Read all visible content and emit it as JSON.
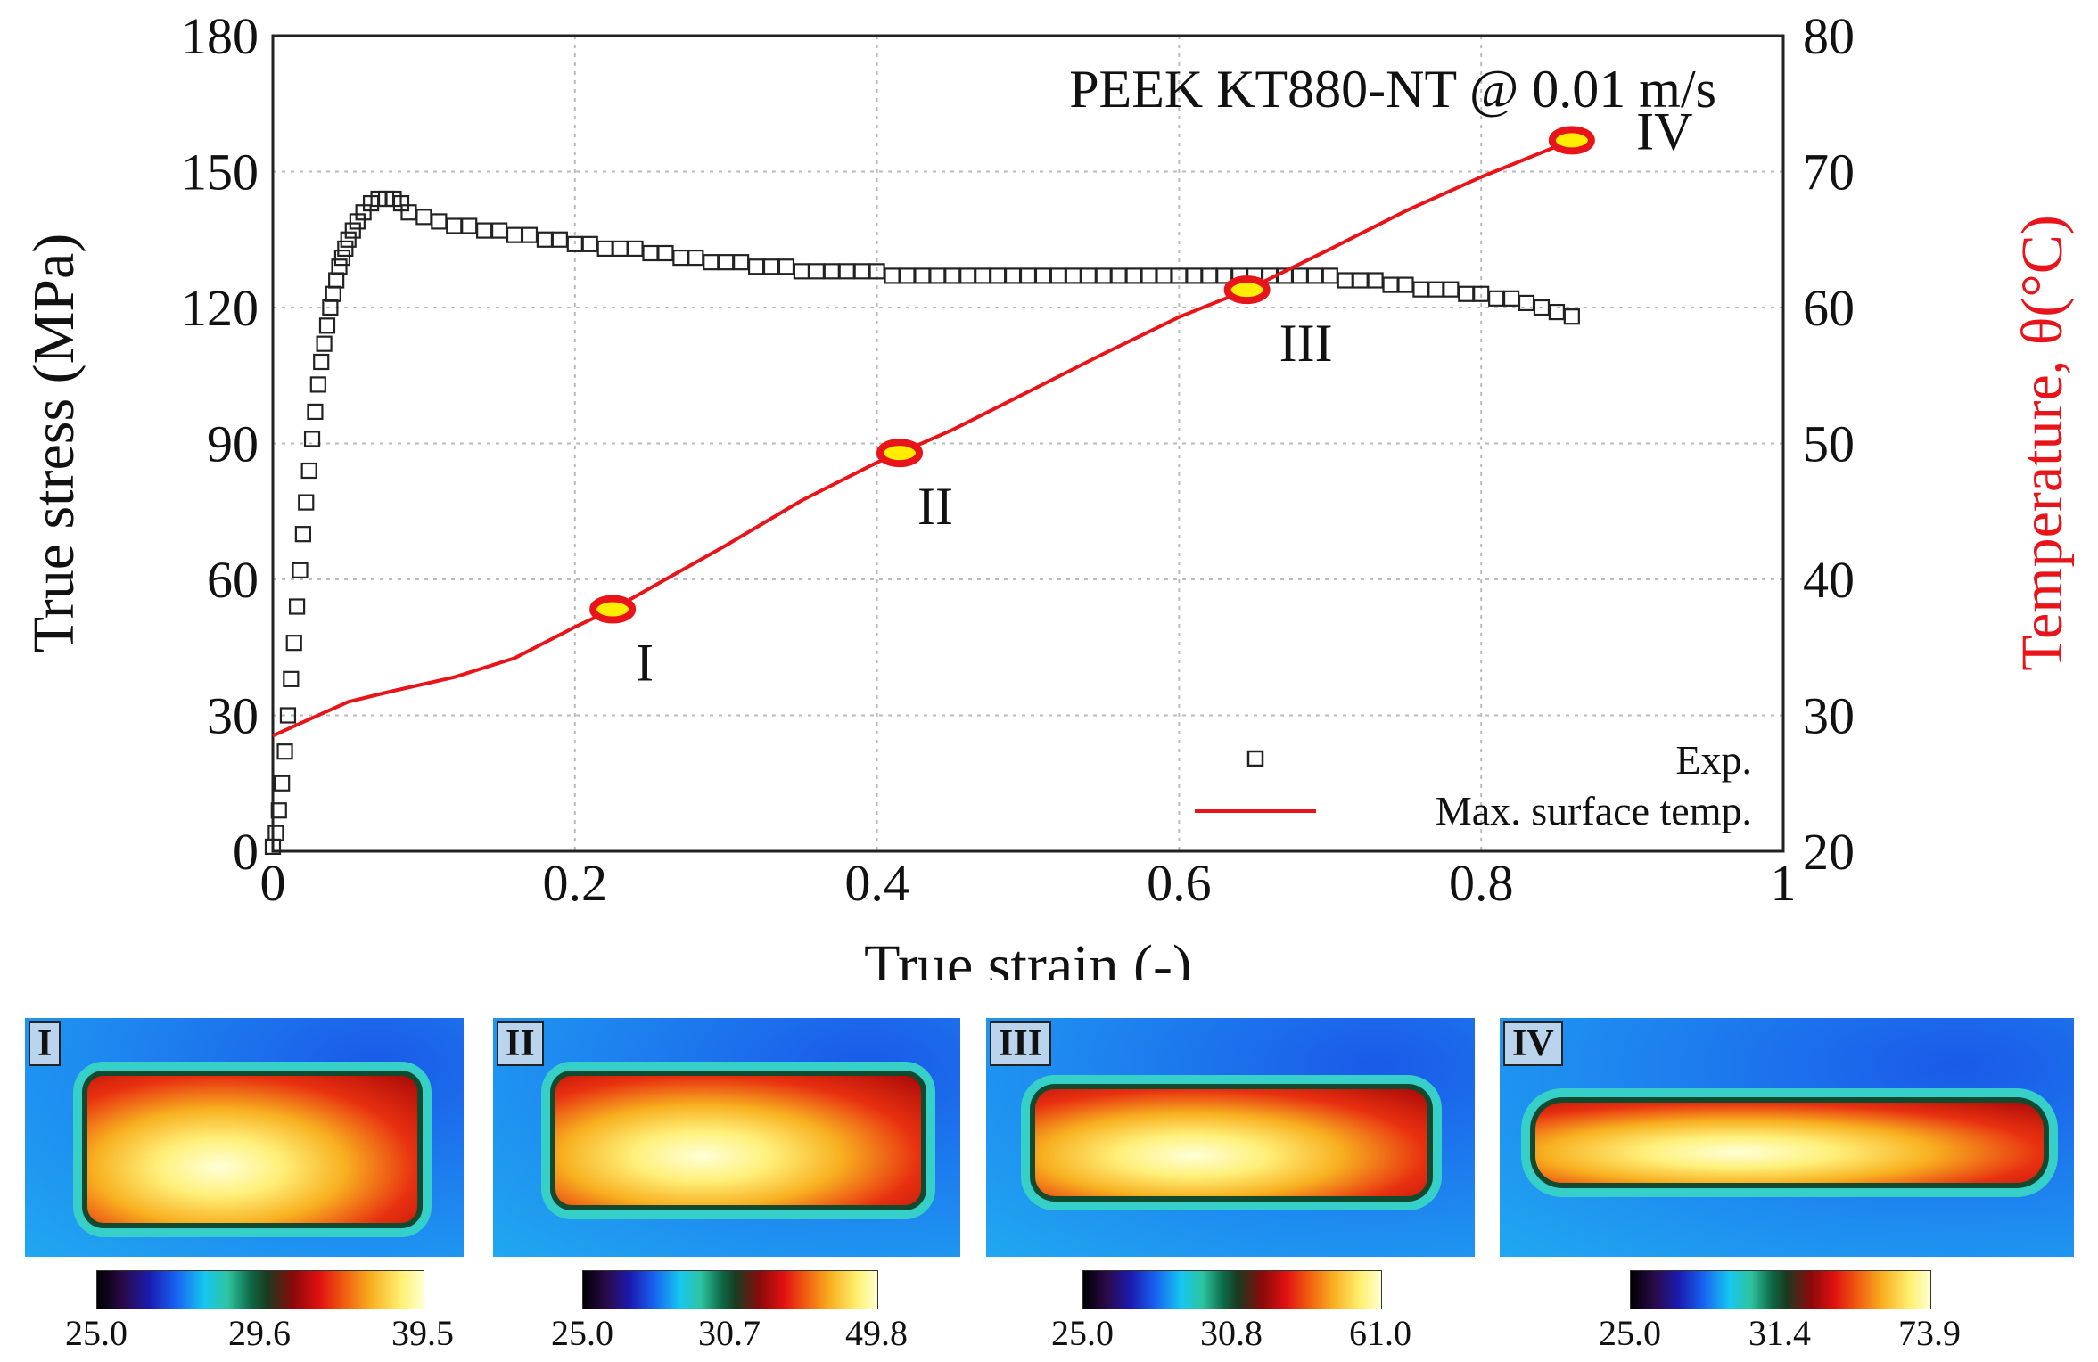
{
  "chart_data": {
    "type": "scatter+line",
    "title": "PEEK KT880-NT @ 0.01 m/s",
    "xlabel": "True strain (-)",
    "ylabel": "True stress (MPa)",
    "y2label": "Temperature, θ(°C)",
    "xlim": [
      0,
      1
    ],
    "ylim": [
      0,
      180
    ],
    "y2lim": [
      20,
      80
    ],
    "xticks": [
      "0",
      "0.2",
      "0.4",
      "0.6",
      "0.8",
      "1"
    ],
    "yticks": [
      "0",
      "30",
      "60",
      "90",
      "120",
      "150",
      "180"
    ],
    "y2ticks": [
      "20",
      "30",
      "40",
      "50",
      "60",
      "70",
      "80"
    ],
    "grid": true,
    "legend": {
      "position": "bottom-right",
      "entries": [
        "Exp.",
        "Max. surface temp."
      ]
    },
    "series": [
      {
        "name": "Exp.",
        "axis": "left",
        "marker": "square",
        "x": [
          0,
          0.002,
          0.004,
          0.006,
          0.008,
          0.01,
          0.012,
          0.014,
          0.016,
          0.018,
          0.02,
          0.022,
          0.024,
          0.026,
          0.028,
          0.03,
          0.032,
          0.034,
          0.036,
          0.038,
          0.04,
          0.042,
          0.044,
          0.046,
          0.048,
          0.05,
          0.053,
          0.056,
          0.06,
          0.065,
          0.07,
          0.075,
          0.08,
          0.085,
          0.09,
          0.1,
          0.11,
          0.12,
          0.13,
          0.14,
          0.15,
          0.16,
          0.17,
          0.18,
          0.19,
          0.2,
          0.21,
          0.22,
          0.23,
          0.24,
          0.25,
          0.26,
          0.27,
          0.28,
          0.29,
          0.3,
          0.31,
          0.32,
          0.33,
          0.34,
          0.35,
          0.36,
          0.37,
          0.38,
          0.39,
          0.4,
          0.41,
          0.42,
          0.43,
          0.44,
          0.45,
          0.46,
          0.47,
          0.48,
          0.49,
          0.5,
          0.51,
          0.52,
          0.53,
          0.54,
          0.55,
          0.56,
          0.57,
          0.58,
          0.59,
          0.6,
          0.61,
          0.62,
          0.63,
          0.64,
          0.65,
          0.66,
          0.67,
          0.68,
          0.69,
          0.7,
          0.71,
          0.72,
          0.73,
          0.74,
          0.75,
          0.76,
          0.77,
          0.78,
          0.79,
          0.8,
          0.81,
          0.82,
          0.83,
          0.84,
          0.85,
          0.86
        ],
        "y": [
          1,
          4,
          9,
          15,
          22,
          30,
          38,
          46,
          54,
          62,
          70,
          77,
          84,
          91,
          97,
          103,
          108,
          112,
          116,
          120,
          123,
          126,
          129,
          131,
          133,
          135,
          137,
          139,
          141,
          143,
          144,
          144,
          144,
          143,
          141,
          140,
          139,
          138,
          138,
          137,
          137,
          136,
          136,
          135,
          135,
          134,
          134,
          133,
          133,
          133,
          132,
          132,
          131,
          131,
          130,
          130,
          130,
          129,
          129,
          129,
          128,
          128,
          128,
          128,
          128,
          128,
          127,
          127,
          127,
          127,
          127,
          127,
          127,
          127,
          127,
          127,
          127,
          127,
          127,
          127,
          127,
          127,
          127,
          127,
          127,
          127,
          127,
          127,
          127,
          127,
          127,
          127,
          127,
          127,
          127,
          127,
          126,
          126,
          126,
          125,
          125,
          124,
          124,
          124,
          123,
          123,
          122,
          122,
          121,
          120,
          119,
          118
        ]
      },
      {
        "name": "Max. surface temp.",
        "axis": "right",
        "color": "#e8141a",
        "x": [
          0,
          0.02,
          0.05,
          0.08,
          0.12,
          0.16,
          0.2,
          0.225,
          0.26,
          0.3,
          0.35,
          0.4,
          0.415,
          0.45,
          0.5,
          0.55,
          0.6,
          0.645,
          0.7,
          0.75,
          0.8,
          0.86
        ],
        "y": [
          28.5,
          29.5,
          31.0,
          31.8,
          32.8,
          34.2,
          36.5,
          37.8,
          40.0,
          42.5,
          45.8,
          48.6,
          49.3,
          51.0,
          53.8,
          56.6,
          59.3,
          61.3,
          64.3,
          67.1,
          69.6,
          72.3
        ]
      }
    ],
    "annotations": [
      {
        "label": "I",
        "x": 0.225,
        "y2": 37.8
      },
      {
        "label": "II",
        "x": 0.415,
        "y2": 49.3
      },
      {
        "label": "III",
        "x": 0.645,
        "y2": 61.3
      },
      {
        "label": "IV",
        "x": 0.86,
        "y2": 72.3
      }
    ]
  },
  "thermal_panels": [
    {
      "label": "I",
      "ticks": [
        "25.0",
        "29.6",
        "39.5"
      ]
    },
    {
      "label": "II",
      "ticks": [
        "25.0",
        "30.7",
        "49.8"
      ]
    },
    {
      "label": "III",
      "ticks": [
        "25.0",
        "30.8",
        "61.0"
      ]
    },
    {
      "label": "IV",
      "ticks": [
        "25.0",
        "31.4",
        "73.9"
      ]
    }
  ]
}
